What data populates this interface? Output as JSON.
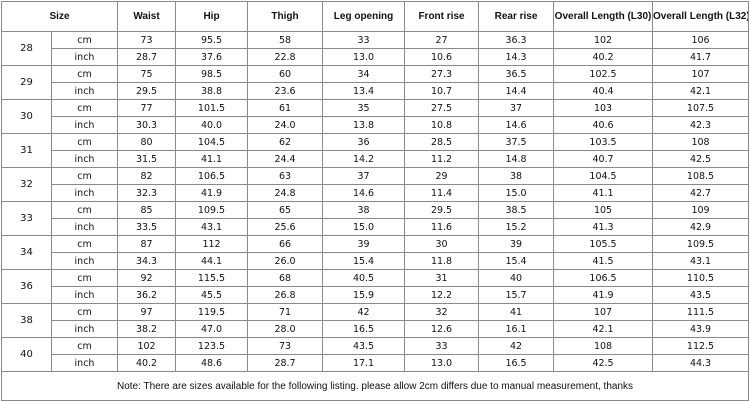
{
  "table": {
    "header": [
      "Size",
      "Waist",
      "Hip",
      "Thigh",
      "Leg opening",
      "Front rise",
      "Rear rise",
      "Overall Length (L30)",
      "Overall Length (L32)"
    ],
    "sizes": [
      {
        "size": "28",
        "rows": [
          {
            "unit": "cm",
            "values": [
              "73",
              "95.5",
              "58",
              "33",
              "27",
              "36.3",
              "102",
              "106"
            ]
          },
          {
            "unit": "inch",
            "values": [
              "28.7",
              "37.6",
              "22.8",
              "13.0",
              "10.6",
              "14.3",
              "40.2",
              "41.7"
            ]
          }
        ]
      },
      {
        "size": "29",
        "rows": [
          {
            "unit": "cm",
            "values": [
              "75",
              "98.5",
              "60",
              "34",
              "27.3",
              "36.5",
              "102.5",
              "107"
            ]
          },
          {
            "unit": "inch",
            "values": [
              "29.5",
              "38.8",
              "23.6",
              "13.4",
              "10.7",
              "14.4",
              "40.4",
              "42.1"
            ]
          }
        ]
      },
      {
        "size": "30",
        "rows": [
          {
            "unit": "cm",
            "values": [
              "77",
              "101.5",
              "61",
              "35",
              "27.5",
              "37",
              "103",
              "107.5"
            ]
          },
          {
            "unit": "inch",
            "values": [
              "30.3",
              "40.0",
              "24.0",
              "13.8",
              "10.8",
              "14.6",
              "40.6",
              "42.3"
            ]
          }
        ]
      },
      {
        "size": "31",
        "rows": [
          {
            "unit": "cm",
            "values": [
              "80",
              "104.5",
              "62",
              "36",
              "28.5",
              "37.5",
              "103.5",
              "108"
            ]
          },
          {
            "unit": "inch",
            "values": [
              "31.5",
              "41.1",
              "24.4",
              "14.2",
              "11.2",
              "14.8",
              "40.7",
              "42.5"
            ]
          }
        ]
      },
      {
        "size": "32",
        "rows": [
          {
            "unit": "cm",
            "values": [
              "82",
              "106.5",
              "63",
              "37",
              "29",
              "38",
              "104.5",
              "108.5"
            ]
          },
          {
            "unit": "inch",
            "values": [
              "32.3",
              "41.9",
              "24.8",
              "14.6",
              "11.4",
              "15.0",
              "41.1",
              "42.7"
            ]
          }
        ]
      },
      {
        "size": "33",
        "rows": [
          {
            "unit": "cm",
            "values": [
              "85",
              "109.5",
              "65",
              "38",
              "29.5",
              "38.5",
              "105",
              "109"
            ]
          },
          {
            "unit": "inch",
            "values": [
              "33.5",
              "43.1",
              "25.6",
              "15.0",
              "11.6",
              "15.2",
              "41.3",
              "42.9"
            ]
          }
        ]
      },
      {
        "size": "34",
        "rows": [
          {
            "unit": "cm",
            "values": [
              "87",
              "112",
              "66",
              "39",
              "30",
              "39",
              "105.5",
              "109.5"
            ]
          },
          {
            "unit": "inch",
            "values": [
              "34.3",
              "44.1",
              "26.0",
              "15.4",
              "11.8",
              "15.4",
              "41.5",
              "43.1"
            ]
          }
        ]
      },
      {
        "size": "36",
        "rows": [
          {
            "unit": "cm",
            "values": [
              "92",
              "115.5",
              "68",
              "40.5",
              "31",
              "40",
              "106.5",
              "110.5"
            ]
          },
          {
            "unit": "inch",
            "values": [
              "36.2",
              "45.5",
              "26.8",
              "15.9",
              "12.2",
              "15.7",
              "41.9",
              "43.5"
            ]
          }
        ]
      },
      {
        "size": "38",
        "rows": [
          {
            "unit": "cm",
            "values": [
              "97",
              "119.5",
              "71",
              "42",
              "32",
              "41",
              "107",
              "111.5"
            ]
          },
          {
            "unit": "inch",
            "values": [
              "38.2",
              "47.0",
              "28.0",
              "16.5",
              "12.6",
              "16.1",
              "42.1",
              "43.9"
            ]
          }
        ]
      },
      {
        "size": "40",
        "rows": [
          {
            "unit": "cm",
            "values": [
              "102",
              "123.5",
              "73",
              "43.5",
              "33",
              "42",
              "108",
              "112.5"
            ]
          },
          {
            "unit": "inch",
            "values": [
              "40.2",
              "48.6",
              "28.7",
              "17.1",
              "13.0",
              "16.5",
              "42.5",
              "44.3"
            ]
          }
        ]
      }
    ],
    "note": "Note: There are sizes available for the following listing. please allow 2cm differs due to manual measurement, thanks"
  }
}
